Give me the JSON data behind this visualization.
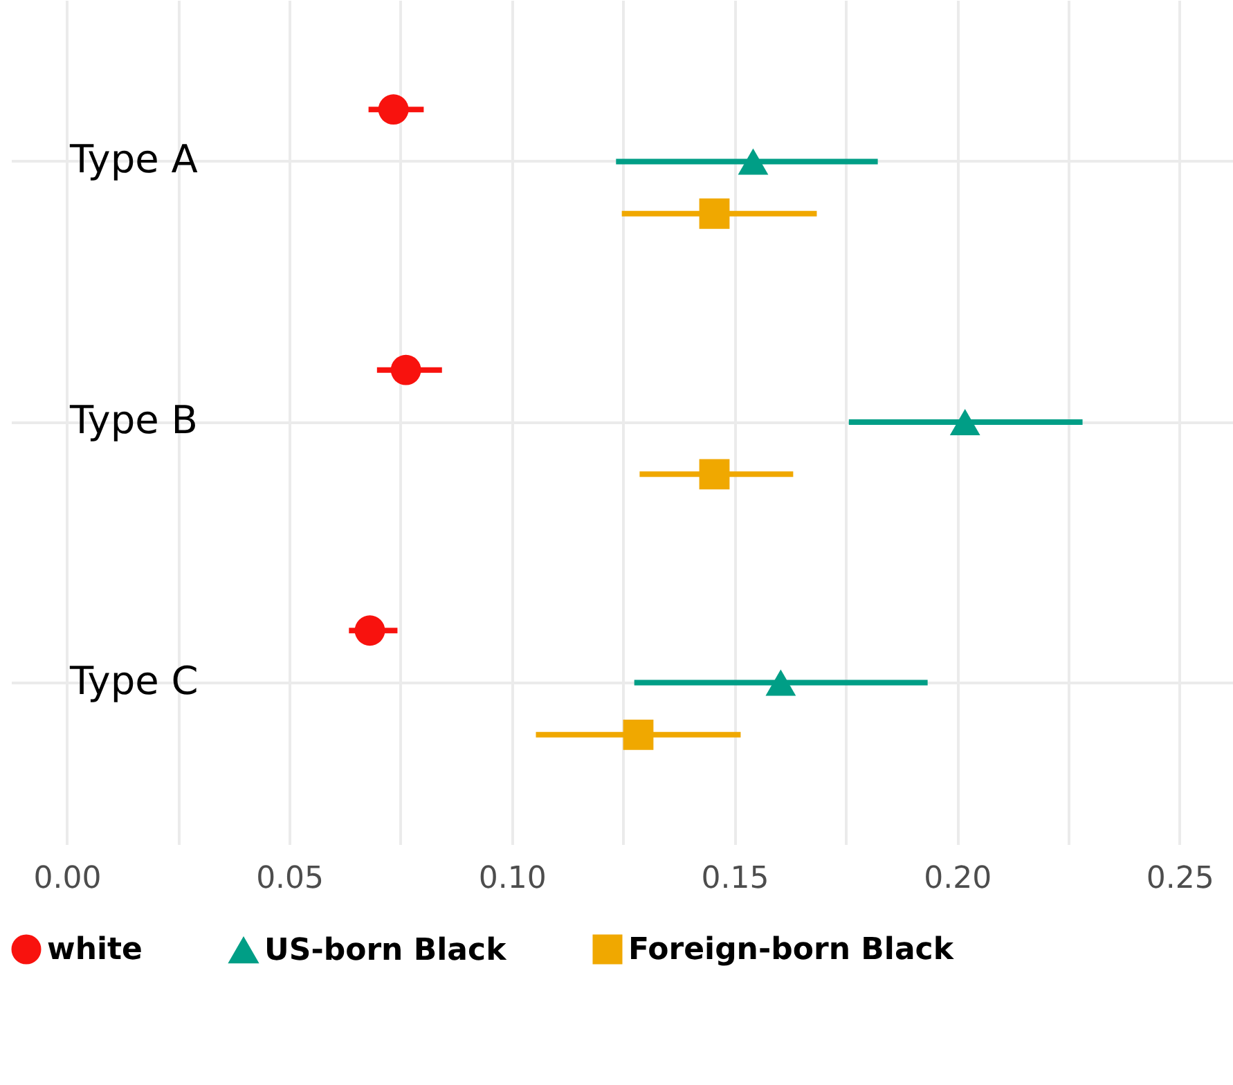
{
  "chart_data": {
    "type": "scatter",
    "orientation": "horizontal",
    "categories": [
      "Type A",
      "Type B",
      "Type C"
    ],
    "series": [
      {
        "name": "white",
        "color": "#f8120e",
        "marker": "circle",
        "values": [
          0.0734,
          0.0762,
          0.0681
        ],
        "errors": [
          [
            0.0678,
            0.0802
          ],
          [
            0.0697,
            0.0843
          ],
          [
            0.0634,
            0.0743
          ]
        ]
      },
      {
        "name": "US-born Black",
        "color": "#009e86",
        "marker": "triangle",
        "values": [
          0.1542,
          0.2018,
          0.1604
        ],
        "errors": [
          [
            0.1234,
            0.1822
          ],
          [
            0.1757,
            0.2282
          ],
          [
            0.1275,
            0.1934
          ]
        ]
      },
      {
        "name": "Foreign-born Black",
        "color": "#f0a800",
        "marker": "square",
        "values": [
          0.1455,
          0.1455,
          0.1284
        ],
        "errors": [
          [
            0.1247,
            0.1685
          ],
          [
            0.1287,
            0.1632
          ],
          [
            0.1054,
            0.1514
          ]
        ]
      }
    ],
    "xlim": [
      -0.0125,
      0.262
    ],
    "xticks": [
      {
        "value": 0,
        "label": "0.00"
      },
      {
        "value": 0.025,
        "label": null
      },
      {
        "value": 0.05,
        "label": "0.05"
      },
      {
        "value": 0.075,
        "label": null
      },
      {
        "value": 0.1,
        "label": "0.10"
      },
      {
        "value": 0.125,
        "label": null
      },
      {
        "value": 0.15,
        "label": "0.15"
      },
      {
        "value": 0.175,
        "label": null
      },
      {
        "value": 0.2,
        "label": "0.20"
      },
      {
        "value": 0.225,
        "label": null
      },
      {
        "value": 0.25,
        "label": "0.25"
      }
    ],
    "grid": true,
    "legend": "bottom"
  }
}
